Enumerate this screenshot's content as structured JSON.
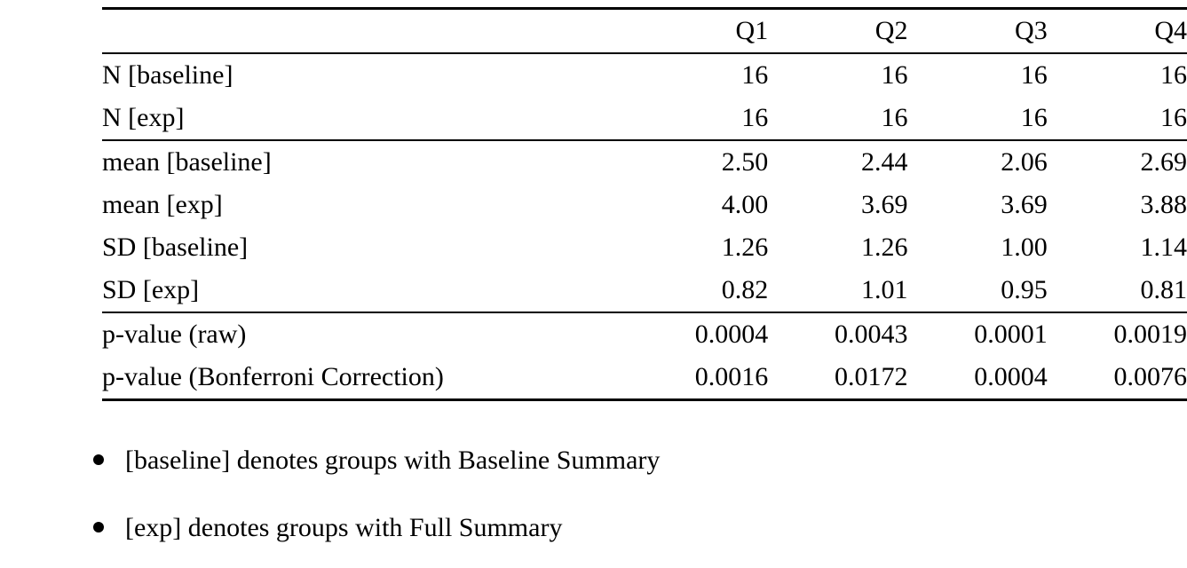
{
  "table": {
    "columns": [
      "",
      "Q1",
      "Q2",
      "Q3",
      "Q4"
    ],
    "groups": [
      {
        "rows": [
          {
            "label": "N [baseline]",
            "values": [
              "16",
              "16",
              "16",
              "16"
            ]
          },
          {
            "label": "N [exp]",
            "values": [
              "16",
              "16",
              "16",
              "16"
            ]
          }
        ]
      },
      {
        "rows": [
          {
            "label": "mean [baseline]",
            "values": [
              "2.50",
              "2.44",
              "2.06",
              "2.69"
            ]
          },
          {
            "label": "mean [exp]",
            "values": [
              "4.00",
              "3.69",
              "3.69",
              "3.88"
            ]
          },
          {
            "label": "SD [baseline]",
            "values": [
              "1.26",
              "1.26",
              "1.00",
              "1.14"
            ]
          },
          {
            "label": "SD [exp]",
            "values": [
              "0.82",
              "1.01",
              "0.95",
              "0.81"
            ]
          }
        ]
      },
      {
        "rows": [
          {
            "label": "p-value (raw)",
            "values": [
              "0.0004",
              "0.0043",
              "0.0001",
              "0.0019"
            ]
          },
          {
            "label": "p-value (Bonferroni Correction)",
            "values": [
              "0.0016",
              "0.0172",
              "0.0004",
              "0.0076"
            ]
          }
        ]
      }
    ]
  },
  "notes": [
    "[baseline] denotes groups with Baseline Summary",
    "[exp] denotes groups with Full Summary"
  ]
}
